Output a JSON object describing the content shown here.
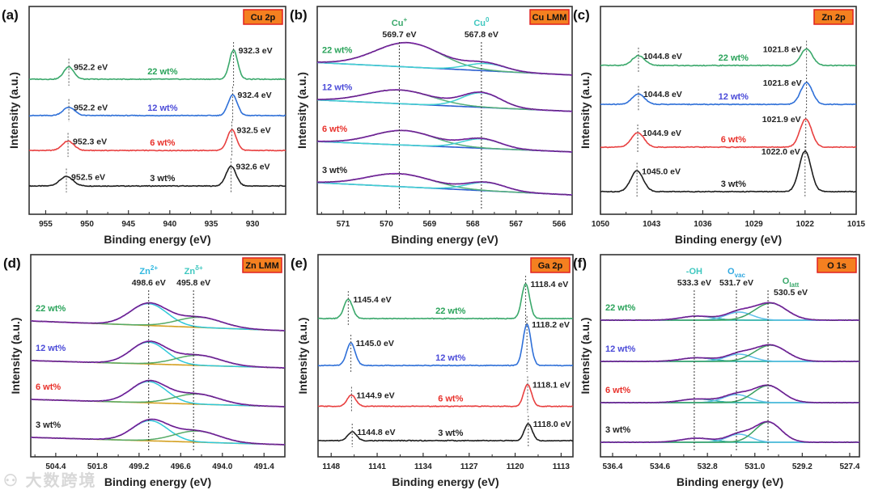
{
  "watermark": "大数跨境",
  "colors": {
    "3 wt%": "#1e1e1e",
    "6 wt%": "#e84040",
    "12 wt%": "#2f70d8",
    "22 wt%": "#3aa86b",
    "label_3": "#222222",
    "label_6": "#e8302a",
    "label_12": "#4a4ad8",
    "label_22": "#2aa35a",
    "title_fill": "#f48020",
    "title_stroke": "#e02020",
    "envelope": "#9b30d0",
    "raw": "#222222"
  },
  "chart_data": [
    {
      "panel": "(a)",
      "title": "Cu 2p",
      "type": "line",
      "xlabel": "Binding energy (eV)",
      "ylabel": "Intensity (a.u.)",
      "xlim": [
        957,
        926
      ],
      "ylim": [
        0,
        10
      ],
      "xticks": [
        "955",
        "950",
        "945",
        "940",
        "935",
        "930"
      ],
      "series": [
        {
          "name": "3 wt%",
          "color": "#1e1e1e",
          "label_color": "#222222",
          "offset": 1.36,
          "peaks": [
            {
              "center": 952.5,
              "amp": 0.45,
              "sigma": 0.8,
              "label": "952.5 eV"
            },
            {
              "center": 932.6,
              "amp": 0.95,
              "sigma": 0.6,
              "label": "932.6 eV"
            }
          ]
        },
        {
          "name": "6 wt%",
          "color": "#e84040",
          "label_color": "#e8302a",
          "offset": 3.07,
          "peaks": [
            {
              "center": 952.3,
              "amp": 0.45,
              "sigma": 0.7,
              "label": "952.3 eV"
            },
            {
              "center": 932.5,
              "amp": 1.0,
              "sigma": 0.55,
              "label": "932.5 eV"
            }
          ]
        },
        {
          "name": "12 wt%",
          "color": "#2f70d8",
          "label_color": "#4a4ad8",
          "offset": 4.75,
          "peaks": [
            {
              "center": 952.2,
              "amp": 0.4,
              "sigma": 0.7,
              "label": "952.2 eV"
            },
            {
              "center": 932.4,
              "amp": 1.0,
              "sigma": 0.55,
              "label": "932.4 eV"
            }
          ]
        },
        {
          "name": "22 wt%",
          "color": "#3aa86b",
          "label_color": "#2aa35a",
          "offset": 6.5,
          "peaks": [
            {
              "center": 952.2,
              "amp": 0.6,
              "sigma": 0.6,
              "label": "952.2 eV"
            },
            {
              "center": 932.3,
              "amp": 1.4,
              "sigma": 0.5,
              "label": "932.3 eV"
            }
          ]
        }
      ]
    },
    {
      "panel": "(b)",
      "title": "Cu LMM",
      "type": "line",
      "xlabel": "Binding energy (eV)",
      "ylabel": "Intensity (a.u.)",
      "xlim": [
        571.6,
        565.7
      ],
      "ylim": [
        0,
        10
      ],
      "xticks": [
        "571",
        "570",
        "569",
        "568",
        "567",
        "566"
      ],
      "fit_colors": {
        "baseline": "#2a5fd0",
        "components": [
          "#55b07a",
          "#40d0d0"
        ]
      },
      "species": [
        {
          "name": "Cu",
          "sup": "+",
          "sub": "",
          "energy": 569.7,
          "label": "569.7 eV",
          "color": "#3aa86b"
        },
        {
          "name": "Cu",
          "sup": "0",
          "sub": "",
          "energy": 567.8,
          "label": "567.8 eV",
          "color": "#40c8c0"
        }
      ],
      "series": [
        {
          "name": "3 wt%",
          "label_color": "#222222",
          "baseline": [
            1.52,
            0.93
          ],
          "components": [
            {
              "center": 569.7,
              "amp": 0.62,
              "sigma": 0.75
            },
            {
              "center": 567.7,
              "amp": 0.4,
              "sigma": 0.45
            }
          ]
        },
        {
          "name": "6 wt%",
          "label_color": "#e8302a",
          "baseline": [
            3.5,
            3.0
          ],
          "components": [
            {
              "center": 569.6,
              "amp": 0.7,
              "sigma": 0.7
            },
            {
              "center": 567.8,
              "amp": 0.45,
              "sigma": 0.45
            }
          ]
        },
        {
          "name": "12 wt%",
          "label_color": "#4a4ad8",
          "baseline": [
            5.5,
            4.95
          ],
          "components": [
            {
              "center": 569.7,
              "amp": 0.66,
              "sigma": 0.75
            },
            {
              "center": 567.8,
              "amp": 0.7,
              "sigma": 0.45
            }
          ]
        },
        {
          "name": "22 wt%",
          "label_color": "#2aa35a",
          "baseline": [
            7.3,
            6.7
          ],
          "components": [
            {
              "center": 569.5,
              "amp": 1.17,
              "sigma": 0.75
            },
            {
              "center": 567.7,
              "amp": 0.35,
              "sigma": 0.45
            }
          ]
        }
      ]
    },
    {
      "panel": "(c)",
      "title": "Zn 2p",
      "type": "line",
      "xlabel": "Binding energy (eV)",
      "ylabel": "Intensity (a.u.)",
      "xlim": [
        1050,
        1015
      ],
      "ylim": [
        0,
        10
      ],
      "xticks": [
        "1050",
        "1043",
        "1036",
        "1029",
        "1022",
        "1015"
      ],
      "series": [
        {
          "name": "3 wt%",
          "color": "#1e1e1e",
          "label_color": "#222222",
          "offset": 1.09,
          "peaks": [
            {
              "center": 1045.0,
              "amp": 1.0,
              "sigma": 0.85,
              "label": "1045.0 eV"
            },
            {
              "center": 1022.0,
              "amp": 1.95,
              "sigma": 0.8,
              "label": "1022.0 eV"
            }
          ]
        },
        {
          "name": "6 wt%",
          "color": "#e84040",
          "label_color": "#e8302a",
          "offset": 3.23,
          "peaks": [
            {
              "center": 1044.9,
              "amp": 0.7,
              "sigma": 0.85,
              "label": "1044.9 eV"
            },
            {
              "center": 1021.9,
              "amp": 1.36,
              "sigma": 0.8,
              "label": "1021.9 eV"
            }
          ]
        },
        {
          "name": "12 wt%",
          "color": "#2f70d8",
          "label_color": "#4a4ad8",
          "offset": 5.29,
          "peaks": [
            {
              "center": 1044.8,
              "amp": 0.5,
              "sigma": 0.85,
              "label": "1044.8 eV"
            },
            {
              "center": 1021.8,
              "amp": 1.05,
              "sigma": 0.8,
              "label": "1021.8 eV"
            }
          ]
        },
        {
          "name": "22 wt%",
          "color": "#3aa86b",
          "label_color": "#2aa35a",
          "offset": 7.16,
          "peaks": [
            {
              "center": 1044.8,
              "amp": 0.47,
              "sigma": 0.85,
              "label": "1044.8 eV"
            },
            {
              "center": 1021.8,
              "amp": 0.8,
              "sigma": 0.8,
              "label": "1021.8 eV"
            }
          ]
        }
      ]
    },
    {
      "panel": "(d)",
      "title": "Zn LMM",
      "type": "line",
      "xlabel": "Binding energy (eV)",
      "ylabel": "Intensity (a.u.)",
      "xlim": [
        505.96,
        490.1
      ],
      "ylim": [
        0,
        10
      ],
      "xticks": [
        "504.4",
        "501.8",
        "499.2",
        "496.6",
        "494.0",
        "491.4"
      ],
      "fit_colors": {
        "baseline": "#d4a020",
        "components": [
          "#30c8d8",
          "#55aa66"
        ]
      },
      "species": [
        {
          "name": "Zn",
          "sup": "2+",
          "sub": "",
          "energy": 498.6,
          "label": "498.6 eV",
          "color": "#30b8e0"
        },
        {
          "name": "Zn",
          "sup": "δ+",
          "sub": "",
          "energy": 495.8,
          "label": "495.8 eV",
          "color": "#40c8c0"
        }
      ],
      "series": [
        {
          "name": "3 wt%",
          "label_color": "#222222",
          "baseline": [
            0.96,
            0.6
          ],
          "components": [
            {
              "center": 498.5,
              "amp": 1.0,
              "sigma": 1.1
            },
            {
              "center": 495.6,
              "amp": 0.55,
              "sigma": 1.4
            }
          ]
        },
        {
          "name": "6 wt%",
          "label_color": "#e8302a",
          "baseline": [
            2.84,
            2.48
          ],
          "components": [
            {
              "center": 498.6,
              "amp": 1.05,
              "sigma": 1.1
            },
            {
              "center": 495.6,
              "amp": 0.5,
              "sigma": 1.4
            }
          ]
        },
        {
          "name": "12 wt%",
          "label_color": "#4a4ad8",
          "baseline": [
            4.76,
            4.4
          ],
          "components": [
            {
              "center": 498.6,
              "amp": 1.08,
              "sigma": 1.1
            },
            {
              "center": 495.5,
              "amp": 0.5,
              "sigma": 1.4
            }
          ]
        },
        {
          "name": "22 wt%",
          "label_color": "#2aa35a",
          "baseline": [
            6.72,
            6.24
          ],
          "components": [
            {
              "center": 498.6,
              "amp": 1.08,
              "sigma": 1.15
            },
            {
              "center": 495.4,
              "amp": 0.5,
              "sigma": 1.4
            }
          ]
        }
      ]
    },
    {
      "panel": "(e)",
      "title": "Ga 2p",
      "type": "line",
      "xlabel": "Binding energy (eV)",
      "ylabel": "Intensity (a.u.)",
      "xlim": [
        1150,
        1111.2
      ],
      "ylim": [
        0,
        10
      ],
      "xticks": [
        "1148",
        "1141",
        "1134",
        "1127",
        "1120",
        "1113"
      ],
      "series": [
        {
          "name": "3 wt%",
          "color": "#1e1e1e",
          "label_color": "#222222",
          "offset": 0.8,
          "peaks": [
            {
              "center": 1144.8,
              "amp": 0.44,
              "sigma": 0.65,
              "label": "1144.8 eV"
            },
            {
              "center": 1118.0,
              "amp": 0.84,
              "sigma": 0.6,
              "label": "1118.0 eV"
            }
          ]
        },
        {
          "name": "6 wt%",
          "color": "#e84040",
          "label_color": "#e8302a",
          "offset": 2.5,
          "peaks": [
            {
              "center": 1144.9,
              "amp": 0.56,
              "sigma": 0.65,
              "label": "1144.9 eV"
            },
            {
              "center": 1118.1,
              "amp": 1.08,
              "sigma": 0.6,
              "label": "1118.1 eV"
            }
          ]
        },
        {
          "name": "12 wt%",
          "color": "#2f70d8",
          "label_color": "#4a4ad8",
          "offset": 4.52,
          "peaks": [
            {
              "center": 1145.0,
              "amp": 1.12,
              "sigma": 0.65,
              "label": "1145.0 eV"
            },
            {
              "center": 1118.2,
              "amp": 2.04,
              "sigma": 0.6,
              "label": "1118.2 eV"
            }
          ]
        },
        {
          "name": "22 wt%",
          "color": "#3aa86b",
          "label_color": "#2aa35a",
          "offset": 6.84,
          "peaks": [
            {
              "center": 1145.4,
              "amp": 0.96,
              "sigma": 0.65,
              "label": "1145.4 eV"
            },
            {
              "center": 1118.4,
              "amp": 1.72,
              "sigma": 0.6,
              "label": "1118.4 eV"
            }
          ]
        }
      ]
    },
    {
      "panel": "(f)",
      "title": "O 1s",
      "type": "line",
      "xlabel": "Binding energy (eV)",
      "ylabel": "Intensity (a.u.)",
      "xlim": [
        536.86,
        527.03
      ],
      "ylim": [
        0,
        10
      ],
      "xticks": [
        "536.4",
        "534.6",
        "532.8",
        "531.0",
        "529.2",
        "527.4"
      ],
      "fit_colors": {
        "baseline": "#30c0b0",
        "components": [
          "#30b0a8",
          "#5bbfe8",
          "#3aa060"
        ]
      },
      "species": [
        {
          "name": "-OH",
          "sup": "",
          "sub": "",
          "energy": 533.3,
          "label": "533.3 eV",
          "color": "#40c8c0"
        },
        {
          "name": "O",
          "sup": "",
          "sub": "vac",
          "energy": 531.7,
          "label": "531.7 eV",
          "color": "#30a8e0"
        },
        {
          "name": "O",
          "sup": "",
          "sub": "latt",
          "energy": 530.5,
          "label": "530.5 eV",
          "color": "#3aa86b"
        }
      ],
      "series": [
        {
          "name": "3 wt%",
          "label_color": "#222222",
          "baseline": [
            0.72,
            0.72
          ],
          "components": [
            {
              "center": 533.2,
              "amp": 0.2,
              "sigma": 0.6
            },
            {
              "center": 531.6,
              "amp": 0.4,
              "sigma": 0.45
            },
            {
              "center": 530.5,
              "amp": 1.0,
              "sigma": 0.5
            }
          ]
        },
        {
          "name": "6 wt%",
          "label_color": "#e8302a",
          "baseline": [
            2.68,
            2.68
          ],
          "components": [
            {
              "center": 533.2,
              "amp": 0.18,
              "sigma": 0.6
            },
            {
              "center": 531.7,
              "amp": 0.4,
              "sigma": 0.5
            },
            {
              "center": 530.5,
              "amp": 0.84,
              "sigma": 0.55
            }
          ]
        },
        {
          "name": "12 wt%",
          "label_color": "#4a4ad8",
          "baseline": [
            4.72,
            4.72
          ],
          "components": [
            {
              "center": 533.2,
              "amp": 0.18,
              "sigma": 0.6
            },
            {
              "center": 531.6,
              "amp": 0.36,
              "sigma": 0.5
            },
            {
              "center": 530.4,
              "amp": 0.8,
              "sigma": 0.6
            }
          ]
        },
        {
          "name": "22 wt%",
          "label_color": "#2aa35a",
          "baseline": [
            6.76,
            6.76
          ],
          "components": [
            {
              "center": 533.2,
              "amp": 0.2,
              "sigma": 0.6
            },
            {
              "center": 531.6,
              "amp": 0.4,
              "sigma": 0.5
            },
            {
              "center": 530.4,
              "amp": 0.84,
              "sigma": 0.6
            }
          ]
        }
      ]
    }
  ]
}
